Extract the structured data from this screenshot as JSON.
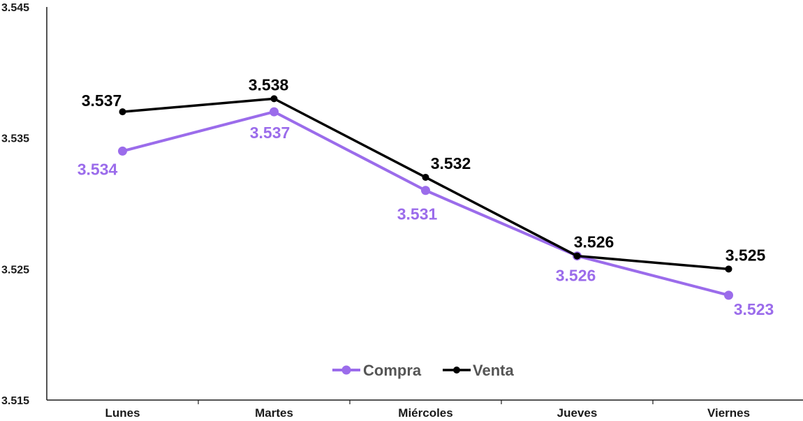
{
  "chart_data": {
    "type": "line",
    "categories": [
      "Lunes",
      "Martes",
      "Miércoles",
      "Jueves",
      "Viernes"
    ],
    "series": [
      {
        "name": "Compra",
        "color": "#9B6CEB",
        "values": [
          3.534,
          3.537,
          3.531,
          3.526,
          3.523
        ],
        "labels": [
          "3.534",
          "3.537",
          "3.531",
          "3.526",
          "3.523"
        ]
      },
      {
        "name": "Venta",
        "color": "#000000",
        "values": [
          3.537,
          3.538,
          3.532,
          3.526,
          3.525
        ],
        "labels": [
          "3.537",
          "3.538",
          "3.532",
          "3.526",
          "3.525"
        ]
      }
    ],
    "ylim": [
      3.515,
      3.545
    ],
    "yticks": [
      3.515,
      3.525,
      3.535,
      3.545
    ],
    "ytick_labels": [
      "3.515",
      "3.525",
      "3.535",
      "3.545"
    ],
    "legend_position": "bottom-center",
    "grid": false,
    "title": "",
    "xlabel": "",
    "ylabel": ""
  }
}
